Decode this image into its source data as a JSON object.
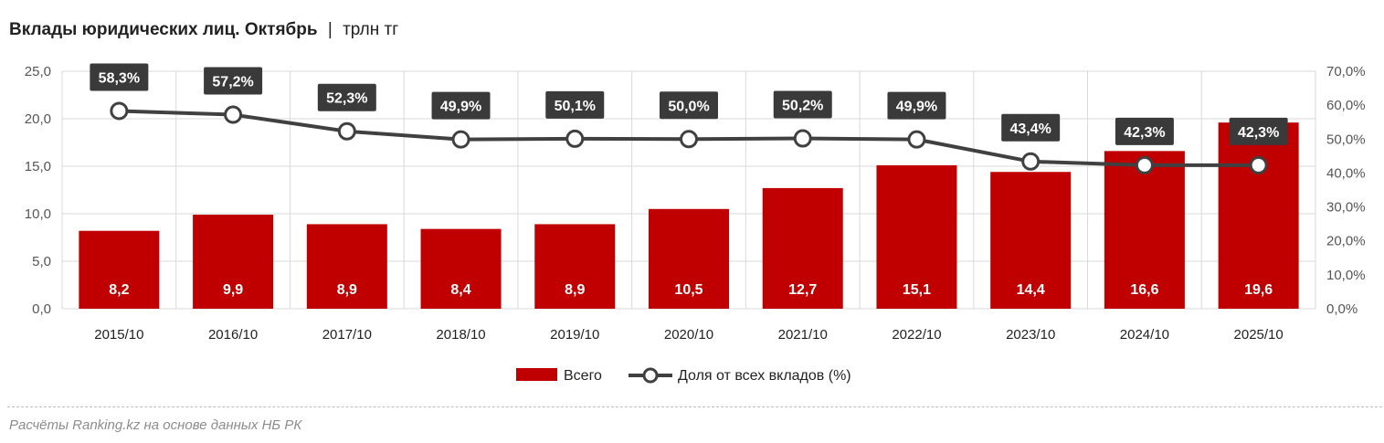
{
  "title": {
    "main": "Вклады юридических лиц. Октябрь",
    "separator": "|",
    "unit": "трлн тг"
  },
  "source": "Расчёты Ranking.kz на основе данных НБ РК",
  "colors": {
    "bar": "#c00000",
    "line": "#404040",
    "label_bg": "#3a3a3a",
    "grid": "#d9d9d9"
  },
  "chart_data": {
    "type": "bar",
    "categories": [
      "2015/10",
      "2016/10",
      "2017/10",
      "2018/10",
      "2019/10",
      "2020/10",
      "2021/10",
      "2022/10",
      "2023/10",
      "2024/10",
      "2025/10"
    ],
    "series": [
      {
        "name": "Всего",
        "type": "bar",
        "axis": "left",
        "values": [
          8.2,
          9.9,
          8.9,
          8.4,
          8.9,
          10.5,
          12.7,
          15.1,
          14.4,
          16.6,
          19.6
        ],
        "labels": [
          "8,2",
          "9,9",
          "8,9",
          "8,4",
          "8,9",
          "10,5",
          "12,7",
          "15,1",
          "14,4",
          "16,6",
          "19,6"
        ]
      },
      {
        "name": "Доля от всех вкладов (%)",
        "type": "line",
        "axis": "right",
        "values": [
          58.3,
          57.2,
          52.3,
          49.9,
          50.1,
          50.0,
          50.2,
          49.9,
          43.4,
          42.3,
          42.3
        ],
        "labels": [
          "58,3%",
          "57,2%",
          "52,3%",
          "49,9%",
          "50,1%",
          "50,0%",
          "50,2%",
          "49,9%",
          "43,4%",
          "42,3%",
          "42,3%"
        ]
      }
    ],
    "y_left": {
      "range": [
        0,
        25
      ],
      "ticks": [
        0,
        5,
        10,
        15,
        20,
        25
      ],
      "tick_labels": [
        "0,0",
        "5,0",
        "10,0",
        "15,0",
        "20,0",
        "25,0"
      ]
    },
    "y_right": {
      "range": [
        0,
        70
      ],
      "ticks": [
        0,
        10,
        20,
        30,
        40,
        50,
        60,
        70
      ],
      "tick_labels": [
        "0,0%",
        "10,0%",
        "20,0%",
        "30,0%",
        "40,0%",
        "50,0%",
        "60,0%",
        "70,0%"
      ]
    },
    "legend": {
      "position": "bottom-center",
      "items": [
        "Всего",
        "Доля от всех вкладов (%)"
      ]
    }
  }
}
